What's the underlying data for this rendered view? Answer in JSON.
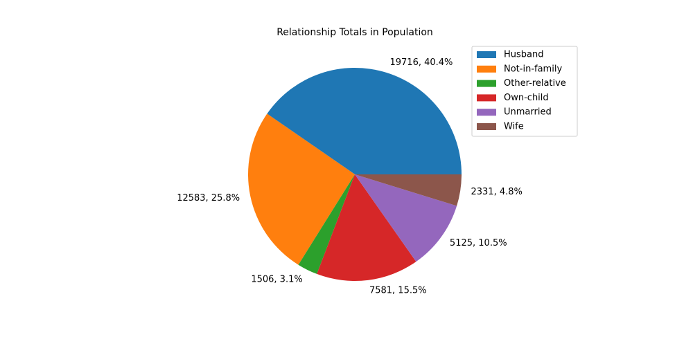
{
  "chart_data": {
    "type": "pie",
    "title": "Relationship Totals in Population",
    "labels": [
      " Husband",
      " Not-in-family",
      " Other-relative",
      " Own-child",
      " Unmarried",
      " Wife"
    ],
    "values": [
      19716,
      12583,
      1506,
      7581,
      5125,
      2331
    ],
    "percents": [
      "40.4%",
      "25.8%",
      "3.1%",
      "15.5%",
      "10.5%",
      "4.8%"
    ],
    "slice_labels": [
      "19716, 40.4%",
      "12583, 25.8%",
      "1506, 3.1%",
      "7581, 15.5%",
      "5125, 10.5%",
      "2331, 4.8%"
    ],
    "colors": [
      "#1f77b4",
      "#ff7f0e",
      "#2ca02c",
      "#d62728",
      "#9467bd",
      "#8c564b"
    ],
    "start_angle_deg": 0,
    "direction": "counterclockwise",
    "legend_position": "upper-right"
  }
}
